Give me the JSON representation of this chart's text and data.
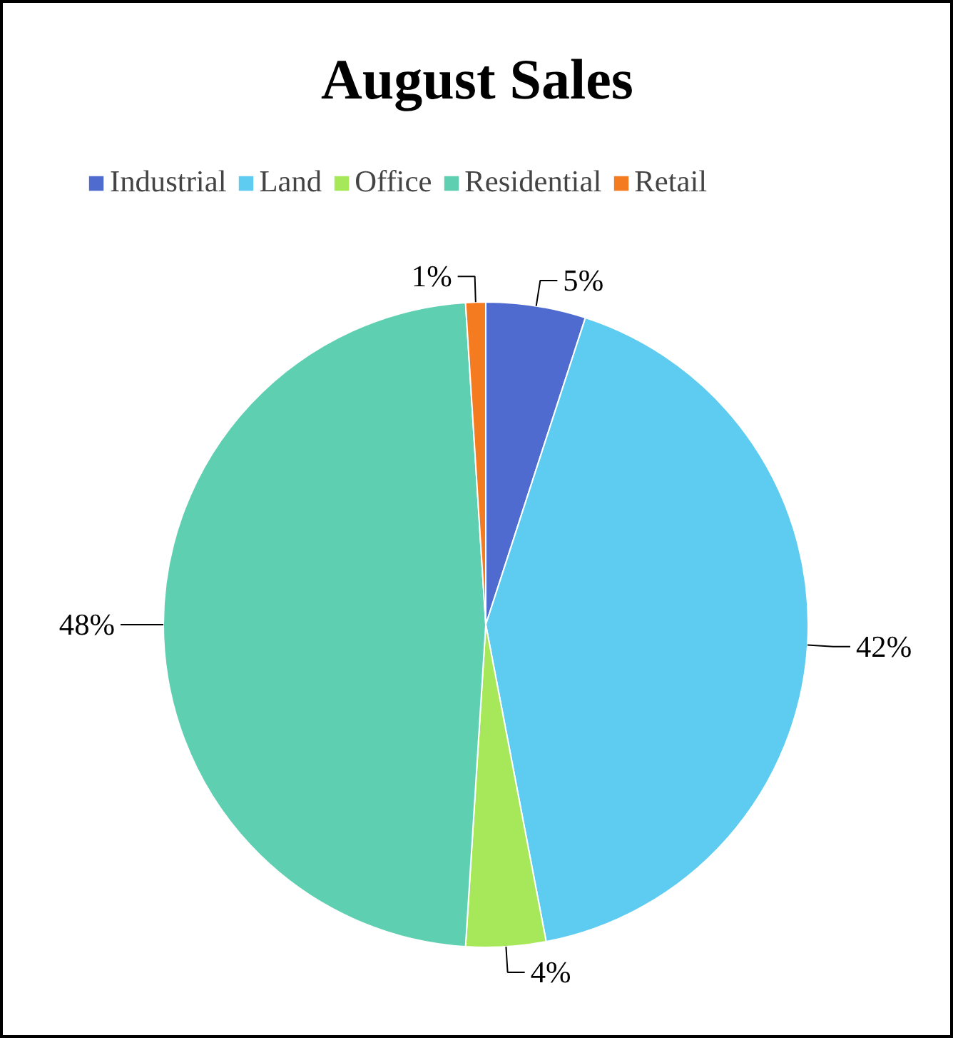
{
  "chart_data": {
    "type": "pie",
    "title": "August Sales",
    "categories": [
      "Industrial",
      "Land",
      "Office",
      "Residential",
      "Retail"
    ],
    "values": [
      5,
      42,
      4,
      48,
      1
    ],
    "colors": [
      "#4f6bcf",
      "#5ecbf0",
      "#a6e85a",
      "#5ecfb1",
      "#f47b20"
    ],
    "value_labels": [
      "5%",
      "42%",
      "4%",
      "48%",
      "1%"
    ],
    "legend": "top"
  }
}
